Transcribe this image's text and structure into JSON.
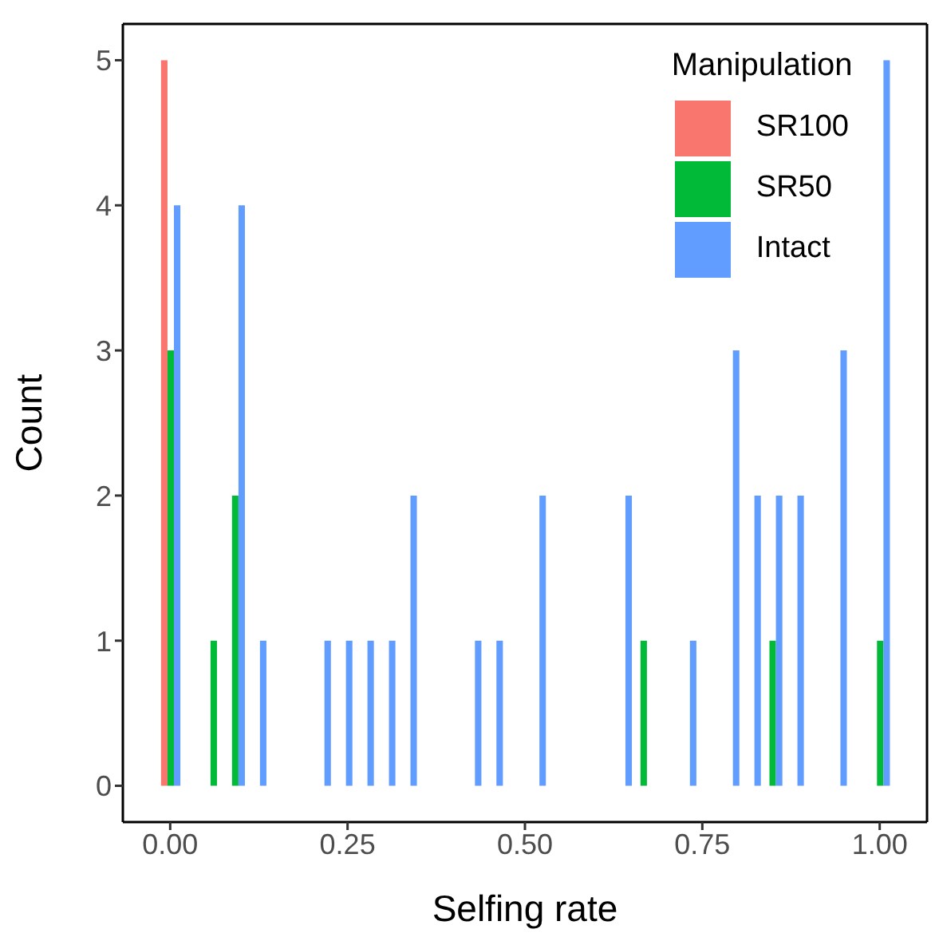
{
  "chart_data": {
    "type": "histogram",
    "xlabel": "Selfing rate",
    "ylabel": "Count",
    "legend_title": "Manipulation",
    "bins": [
      -0.0152,
      0.0152,
      0.0455,
      0.0758,
      0.1061,
      0.1364,
      0.1667,
      0.197,
      0.2273,
      0.2576,
      0.2879,
      0.3182,
      0.3485,
      0.3788,
      0.4091,
      0.4394,
      0.4697,
      0.5,
      0.5303,
      0.5606,
      0.5909,
      0.6212,
      0.6515,
      0.6818,
      0.7121,
      0.7424,
      0.7727,
      0.803,
      0.8333,
      0.8636,
      0.8939,
      0.9242,
      0.9545,
      0.9848,
      1.0152
    ],
    "series": [
      {
        "name": "SR100",
        "color": "#f8766d",
        "values": [
          5,
          0,
          0,
          0,
          0,
          0,
          0,
          0,
          0,
          0,
          0,
          0,
          0,
          0,
          0,
          0,
          0,
          0,
          0,
          0,
          0,
          0,
          0,
          0,
          0,
          0,
          0,
          0,
          0,
          0,
          0,
          0,
          0,
          0
        ]
      },
      {
        "name": "SR50",
        "color": "#00ba38",
        "values": [
          3,
          0,
          1,
          2,
          0,
          0,
          0,
          0,
          0,
          0,
          0,
          0,
          0,
          0,
          0,
          0,
          0,
          0,
          0,
          0,
          0,
          0,
          1,
          0,
          0,
          0,
          0,
          0,
          1,
          0,
          0,
          0,
          0,
          1
        ]
      },
      {
        "name": "Intact",
        "color": "#619cff",
        "values": [
          4,
          0,
          0,
          4,
          1,
          0,
          0,
          1,
          1,
          1,
          1,
          2,
          0,
          0,
          1,
          1,
          0,
          2,
          0,
          0,
          0,
          2,
          0,
          0,
          1,
          0,
          3,
          2,
          2,
          2,
          0,
          3,
          0,
          5
        ]
      }
    ],
    "xlim": [
      -0.0667,
      1.0667
    ],
    "xticks": [
      {
        "value": 0,
        "label": "0.00"
      },
      {
        "value": 0.25,
        "label": "0.25"
      },
      {
        "value": 0.5,
        "label": "0.50"
      },
      {
        "value": 0.75,
        "label": "0.75"
      },
      {
        "value": 1,
        "label": "1.00"
      }
    ],
    "ylim": [
      -0.25,
      5.25
    ],
    "yticks": [
      0,
      1,
      2,
      3,
      4,
      5
    ],
    "legend": "top right"
  }
}
